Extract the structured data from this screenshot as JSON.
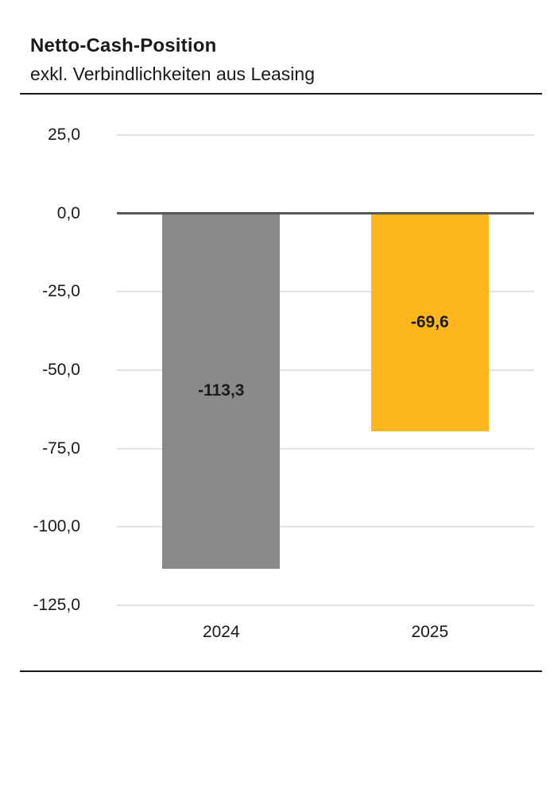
{
  "header": {
    "title": "Netto-Cash-Position",
    "subtitle": "exkl. Verbindlichkeiten aus Leasing"
  },
  "chart_data": {
    "type": "bar",
    "title": "Netto-Cash-Position",
    "subtitle": "exkl. Verbindlichkeiten aus Leasing",
    "categories": [
      "2024",
      "2025"
    ],
    "values": [
      -113.3,
      -69.6
    ],
    "value_labels": [
      "-113,3",
      "-69,6"
    ],
    "bar_colors": [
      "#8a8a8a",
      "#fdb71c"
    ],
    "xlabel": "",
    "ylabel": "",
    "ylim": [
      -125,
      25
    ],
    "yticks": [
      25,
      0,
      -25,
      -50,
      -75,
      -100,
      -125
    ],
    "ytick_labels": [
      "25,0",
      "0,0",
      "-25,0",
      "-50,0",
      "-75,0",
      "-100,0",
      "-125,0"
    ],
    "grid": true,
    "legend": false,
    "gridline_color": "#e3e3e3",
    "zero_line_color": "#58585a",
    "label_color": "#1a1a1a"
  }
}
